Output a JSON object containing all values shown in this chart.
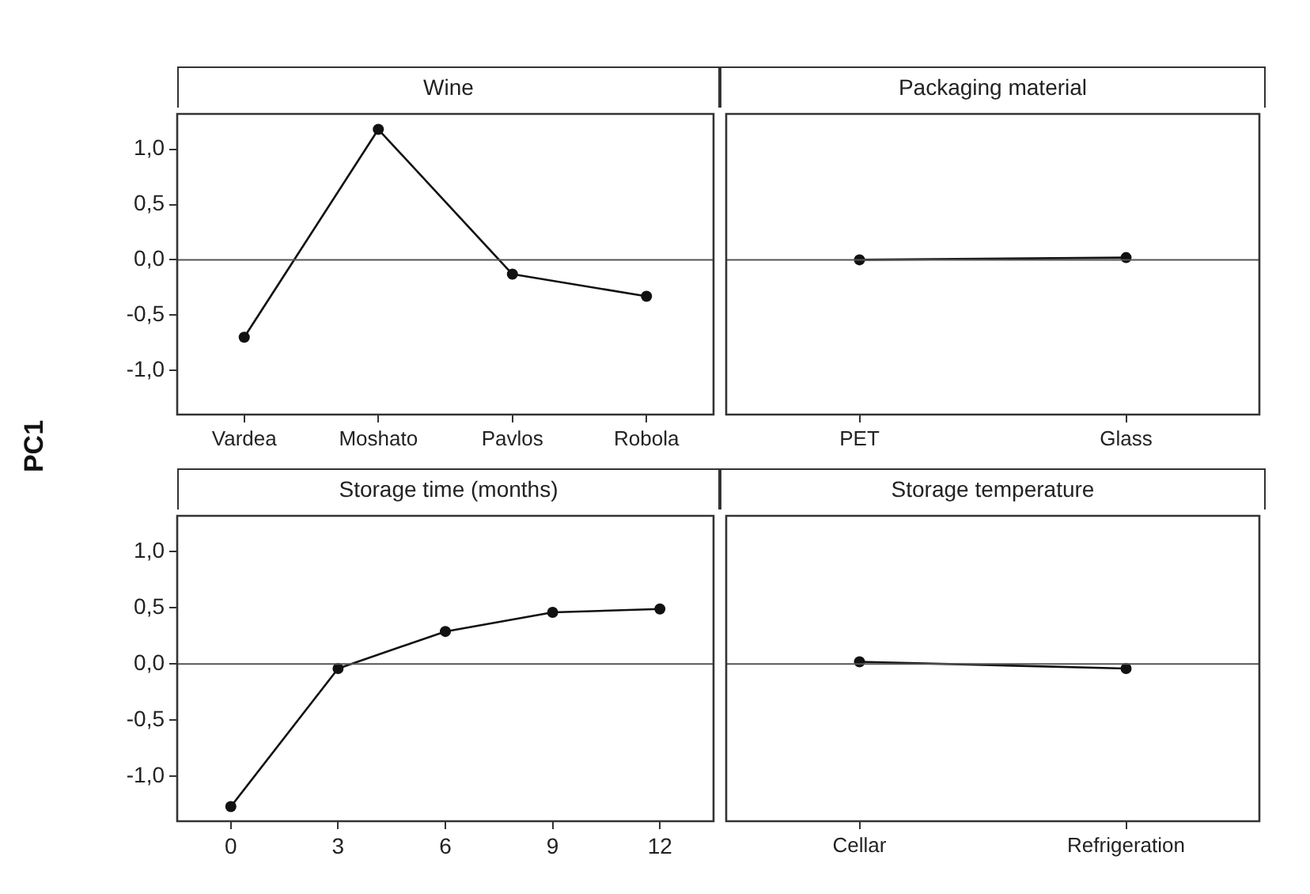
{
  "chart_data": [
    {
      "type": "line",
      "title": "Wine",
      "ylabel": "PC1",
      "categories": [
        "Vardea",
        "Moshato",
        "Pavlos",
        "Robola"
      ],
      "values": [
        -0.7,
        1.18,
        -0.13,
        -0.33
      ],
      "color": "#111111",
      "marker": "circle",
      "ylim": [
        -1.4,
        1.32
      ],
      "yticks": [
        {
          "value": -1,
          "label": "-1,0"
        },
        {
          "value": -0.5,
          "label": "-0,5"
        },
        {
          "value": 0,
          "label": "0,0"
        },
        {
          "value": 0.5,
          "label": "0,5"
        },
        {
          "value": 1,
          "label": "1,0"
        }
      ],
      "ref_lines": [
        {
          "axis": "y",
          "value": 0,
          "color": "#555555"
        }
      ]
    },
    {
      "type": "line",
      "title": "Packaging material",
      "categories": [
        "PET",
        "Glass"
      ],
      "values": [
        0.0,
        0.02
      ],
      "color": "#111111",
      "marker": "circle",
      "ylim": [
        -1.4,
        1.32
      ],
      "tick_labels": "x",
      "ref_lines": [
        {
          "axis": "y",
          "value": 0,
          "color": "#555555"
        }
      ]
    },
    {
      "type": "line",
      "title": "Storage time (months)",
      "x": [
        0,
        3,
        6,
        9,
        12
      ],
      "values": [
        -1.27,
        -0.04,
        0.29,
        0.46,
        0.49
      ],
      "color": "#111111",
      "marker": "circle",
      "xlim": [
        -1.5,
        13.5
      ],
      "xticks": [
        0,
        3,
        6,
        9,
        12
      ],
      "ylim": [
        -1.4,
        1.32
      ],
      "yticks": [
        {
          "value": -1,
          "label": "-1,0"
        },
        {
          "value": -0.5,
          "label": "-0,5"
        },
        {
          "value": 0,
          "label": "0,0"
        },
        {
          "value": 0.5,
          "label": "0,5"
        },
        {
          "value": 1,
          "label": "1,0"
        }
      ],
      "ref_lines": [
        {
          "axis": "y",
          "value": 0,
          "color": "#555555"
        }
      ]
    },
    {
      "type": "line",
      "title": "Storage temperature",
      "categories": [
        "Cellar",
        "Refrigeration"
      ],
      "values": [
        0.02,
        -0.04
      ],
      "color": "#111111",
      "marker": "circle",
      "ylim": [
        -1.4,
        1.32
      ],
      "tick_labels": "x",
      "ref_lines": [
        {
          "axis": "y",
          "value": 0,
          "color": "#555555"
        }
      ]
    }
  ]
}
